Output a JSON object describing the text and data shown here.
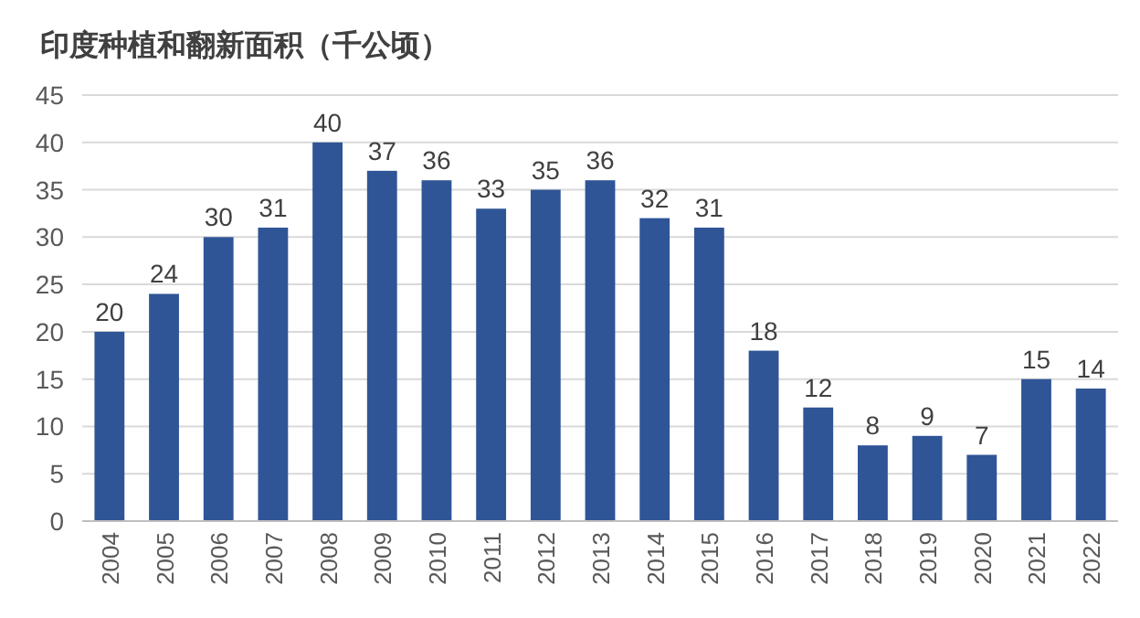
{
  "chart_data": {
    "type": "bar",
    "title": "印度种植和翻新面积（千公顷）",
    "categories": [
      "2004",
      "2005",
      "2006",
      "2007",
      "2008",
      "2009",
      "2010",
      "2011",
      "2012",
      "2013",
      "2014",
      "2015",
      "2016",
      "2017",
      "2018",
      "2019",
      "2020",
      "2021",
      "2022"
    ],
    "values": [
      20,
      24,
      30,
      31,
      40,
      37,
      36,
      33,
      35,
      36,
      32,
      31,
      18,
      12,
      8,
      9,
      7,
      15,
      14
    ],
    "color": "#2f5597",
    "ylim": [
      0,
      45
    ],
    "yticks": [
      0,
      5,
      10,
      15,
      20,
      25,
      30,
      35,
      40,
      45
    ],
    "grid": "y",
    "data_labels": true
  }
}
